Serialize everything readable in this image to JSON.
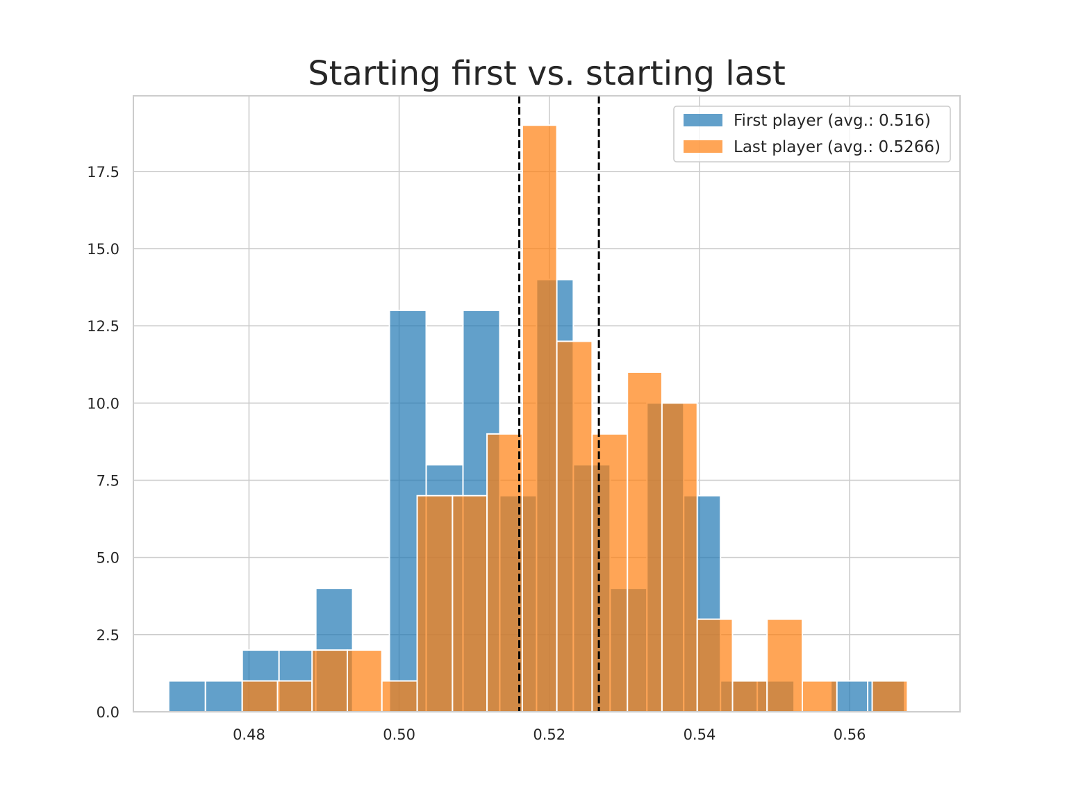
{
  "chart_data": {
    "type": "bar",
    "title": "Starting first vs. starting last",
    "xlabel": "",
    "ylabel": "",
    "xlim": [
      0.4646,
      0.5747
    ],
    "ylim": [
      0,
      19.95
    ],
    "xticks": [
      0.48,
      0.5,
      0.52,
      0.54,
      0.56
    ],
    "xtick_labels": [
      "0.48",
      "0.50",
      "0.52",
      "0.54",
      "0.56"
    ],
    "yticks": [
      0,
      2.5,
      5,
      7.5,
      10,
      12.5,
      15,
      17.5
    ],
    "ytick_labels": [
      "0.0",
      "2.5",
      "5.0",
      "7.5",
      "10.0",
      "12.5",
      "15.0",
      "17.5"
    ],
    "grid": true,
    "legend_position": "top-right",
    "vlines": [
      {
        "x": 0.516,
        "style": "dashed",
        "color": "#000000"
      },
      {
        "x": 0.5266,
        "style": "dashed",
        "color": "#000000"
      }
    ],
    "series": [
      {
        "name": "First player (avg.: 0.516)",
        "color": "#1f77b4",
        "bin_edges": [
          0.4693,
          0.4742,
          0.4791,
          0.484,
          0.4889,
          0.4938,
          0.4987,
          0.5036,
          0.5085,
          0.5134,
          0.5183,
          0.5232,
          0.5281,
          0.533,
          0.5379,
          0.5428,
          0.5477,
          0.5526,
          0.5575,
          0.5624,
          0.5673
        ],
        "counts": [
          1,
          1,
          2,
          2,
          4,
          0,
          13,
          8,
          13,
          7,
          14,
          8,
          4,
          10,
          7,
          1,
          1,
          0,
          1,
          1
        ]
      },
      {
        "name": "Last player (avg.: 0.5266)",
        "color": "#ff7f0e",
        "bin_edges": [
          0.4838,
          0.4884,
          0.4931,
          0.4977,
          0.5024,
          0.5071,
          0.5117,
          0.5164,
          0.521,
          0.5257,
          0.5304,
          0.535,
          0.5397,
          0.5444,
          0.549,
          0.5537,
          0.5583,
          0.563,
          0.5677,
          0.5723
        ],
        "bin_start_left": 0.4791,
        "counts": [
          1,
          1,
          2,
          2,
          1,
          7,
          7,
          9,
          19,
          12,
          9,
          11,
          10,
          3,
          1,
          3,
          1,
          0,
          1
        ]
      }
    ]
  }
}
